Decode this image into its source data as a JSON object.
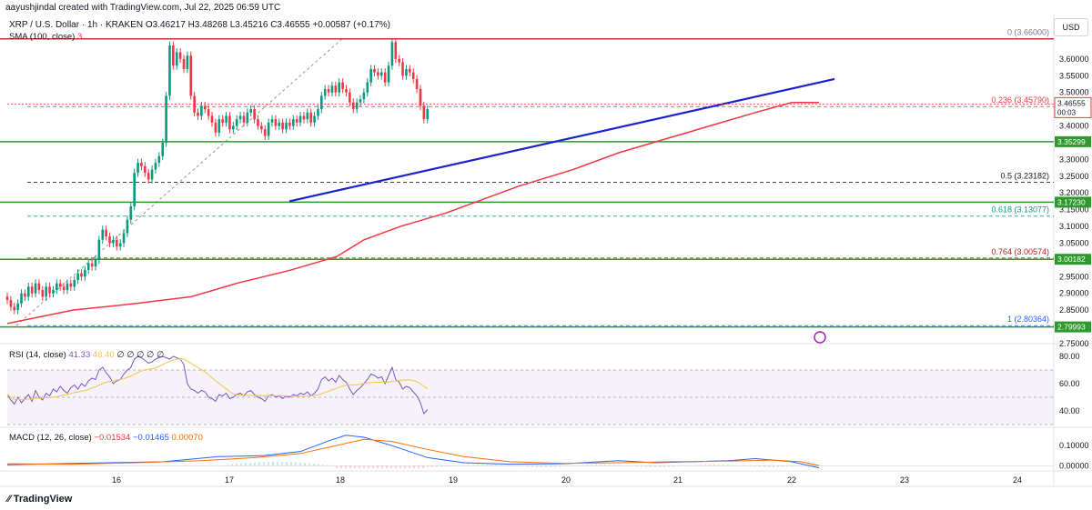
{
  "header": {
    "author_line": "aayushjindal created with TradingView.com, Jul 22, 2025 06:59 UTC",
    "symbol": "XRP / U.S. Dollar · 1h · KRAKEN",
    "ohlc": "O3.46217 H3.48268 L3.45216 C3.46555 +0.00587 (+0.17%)",
    "sma_label": "SMA (100, close)",
    "sma_value": "3"
  },
  "currency_button": "USD",
  "brand": "TradingView",
  "chart_data": {
    "type": "candlestick",
    "symbol": "XRP / U.S. Dollar",
    "timeframe": "1h",
    "exchange": "KRAKEN",
    "currency": "USD",
    "x_ticks": [
      "16",
      "17",
      "18",
      "19",
      "20",
      "21",
      "22",
      "23",
      "24"
    ],
    "y_ticks": [
      "3.60000",
      "3.55000",
      "3.50000",
      "3.45000",
      "3.40000",
      "3.30000",
      "3.25000",
      "3.20000",
      "3.15000",
      "3.10000",
      "3.05000",
      "2.95000",
      "2.90000",
      "2.85000",
      "2.75000"
    ],
    "price_ylim": [
      2.75,
      3.7
    ],
    "last_price": {
      "price": 3.46555,
      "label": "3.46555",
      "countdown": "00:03"
    },
    "candles_close": [
      2.88,
      2.86,
      2.85,
      2.87,
      2.9,
      2.89,
      2.92,
      2.9,
      2.93,
      2.91,
      2.89,
      2.92,
      2.9,
      2.91,
      2.93,
      2.92,
      2.91,
      2.93,
      2.92,
      2.94,
      2.96,
      2.95,
      2.97,
      2.99,
      2.98,
      3.0,
      3.06,
      3.09,
      3.07,
      3.05,
      3.06,
      3.04,
      3.05,
      3.08,
      3.12,
      3.16,
      3.26,
      3.29,
      3.28,
      3.26,
      3.24,
      3.27,
      3.29,
      3.31,
      3.35,
      3.49,
      3.64,
      3.58,
      3.62,
      3.6,
      3.57,
      3.61,
      3.49,
      3.44,
      3.43,
      3.46,
      3.45,
      3.43,
      3.41,
      3.38,
      3.42,
      3.41,
      3.43,
      3.39,
      3.4,
      3.42,
      3.43,
      3.41,
      3.44,
      3.45,
      3.42,
      3.4,
      3.39,
      3.37,
      3.41,
      3.42,
      3.4,
      3.41,
      3.39,
      3.41,
      3.4,
      3.42,
      3.41,
      3.43,
      3.42,
      3.44,
      3.41,
      3.43,
      3.45,
      3.49,
      3.51,
      3.5,
      3.52,
      3.5,
      3.53,
      3.51,
      3.5,
      3.47,
      3.45,
      3.47,
      3.48,
      3.5,
      3.53,
      3.57,
      3.56,
      3.55,
      3.56,
      3.53,
      3.58,
      3.65,
      3.6,
      3.59,
      3.55,
      3.57,
      3.56,
      3.54,
      3.51,
      3.46,
      3.42,
      3.45
    ],
    "candles_first_x": 8,
    "candles_x_step": 3.88,
    "sma100_points": [
      [
        8,
        2.81
      ],
      [
        80,
        2.85
      ],
      [
        150,
        2.87
      ],
      [
        210,
        2.89
      ],
      [
        260,
        2.93
      ],
      [
        320,
        2.97
      ],
      [
        370,
        3.01
      ],
      [
        400,
        3.06
      ],
      [
        440,
        3.1
      ],
      [
        490,
        3.14
      ],
      [
        530,
        3.18
      ],
      [
        570,
        3.22
      ],
      [
        630,
        3.27
      ],
      [
        680,
        3.32
      ],
      [
        730,
        3.36
      ],
      [
        780,
        3.4
      ],
      [
        830,
        3.44
      ],
      [
        870,
        3.47
      ],
      [
        900,
        3.47
      ]
    ],
    "trendline": {
      "from": [
        318,
        3.175
      ],
      "to": [
        917,
        3.54
      ]
    },
    "horizontal_levels": [
      {
        "price": 3.66,
        "label": "",
        "color": "#d32f2f",
        "style": "solid"
      },
      {
        "price": 3.35299,
        "label": "3.35299",
        "color": "#2e9a2e",
        "style": "solid"
      },
      {
        "price": 3.1723,
        "label": "3.17230",
        "color": "#2e9a2e",
        "style": "solid"
      },
      {
        "price": 3.00182,
        "label": "3.00182",
        "color": "#2e9a2e",
        "style": "solid"
      },
      {
        "price": 2.79993,
        "label": "2.79993",
        "color": "#2e9a2e",
        "style": "solid"
      }
    ],
    "fib_levels": [
      {
        "ratio": "0",
        "price": 3.66,
        "label": "0 (3.66000)",
        "color": "#787b86"
      },
      {
        "ratio": "0.236",
        "price": 3.4579,
        "label": "0.236 (3.45790)",
        "color": "#f23645"
      },
      {
        "ratio": "0.5",
        "price": 3.23182,
        "label": "0.5 (3.23182)",
        "color": "#131722"
      },
      {
        "ratio": "0.618",
        "price": 3.13077,
        "label": "0.618 (3.13077)",
        "color": "#089981"
      },
      {
        "ratio": "0.764",
        "price": 3.00574,
        "label": "0.764 (3.00574)",
        "color": "#b71c1c"
      },
      {
        "ratio": "1",
        "price": 2.80364,
        "label": "1 (2.80364)",
        "color": "#2962ff"
      }
    ],
    "rsi": {
      "label": "RSI (14, close)",
      "value": "41.33",
      "ma_value": "48.40",
      "extra": "∅ ∅ ∅ ∅ ∅",
      "y_ticks": [
        "80.00",
        "60.00",
        "40.00"
      ],
      "ylim": [
        28,
        88
      ],
      "values": [
        52,
        48,
        45,
        50,
        46,
        49,
        52,
        47,
        55,
        50,
        48,
        53,
        51,
        56,
        54,
        58,
        55,
        53,
        57,
        59,
        56,
        60,
        58,
        62,
        64,
        63,
        70,
        72,
        68,
        65,
        60,
        62,
        63,
        67,
        70,
        72,
        78,
        80,
        79,
        77,
        75,
        76,
        78,
        79,
        80,
        79,
        78,
        80,
        79,
        78,
        74,
        60,
        56,
        55,
        53,
        55,
        54,
        50,
        49,
        47,
        52,
        51,
        53,
        49,
        50,
        52,
        53,
        51,
        54,
        55,
        52,
        50,
        49,
        47,
        51,
        52,
        50,
        51,
        49,
        51,
        50,
        52,
        51,
        53,
        52,
        54,
        51,
        53,
        56,
        63,
        65,
        62,
        64,
        61,
        66,
        63,
        61,
        56,
        52,
        55,
        57,
        60,
        63,
        67,
        66,
        64,
        65,
        60,
        66,
        72,
        63,
        61,
        56,
        58,
        57,
        54,
        51,
        46,
        38,
        41
      ]
    },
    "macd": {
      "label": "MACD (12, 26, close)",
      "hist_value": "−0.01534",
      "macd_value": "−0.01465",
      "signal_value": "0.00070",
      "y_ticks": [
        "0.10000",
        "0.00000"
      ],
      "ylim": [
        -0.025,
        0.18
      ],
      "macd_line": [
        [
          8,
          0.005
        ],
        [
          60,
          0.01
        ],
        [
          120,
          0.015
        ],
        [
          180,
          0.02
        ],
        [
          240,
          0.045
        ],
        [
          290,
          0.05
        ],
        [
          330,
          0.07
        ],
        [
          360,
          0.12
        ],
        [
          380,
          0.15
        ],
        [
          400,
          0.14
        ],
        [
          430,
          0.1
        ],
        [
          470,
          0.04
        ],
        [
          510,
          0.015
        ],
        [
          560,
          0.008
        ],
        [
          620,
          0.01
        ],
        [
          680,
          0.025
        ],
        [
          720,
          0.015
        ],
        [
          760,
          0.02
        ],
        [
          800,
          0.025
        ],
        [
          830,
          0.035
        ],
        [
          870,
          0.02
        ],
        [
          900,
          -0.01
        ]
      ],
      "signal_line": [
        [
          8,
          0.01
        ],
        [
          80,
          0.008
        ],
        [
          150,
          0.015
        ],
        [
          220,
          0.025
        ],
        [
          280,
          0.04
        ],
        [
          330,
          0.06
        ],
        [
          370,
          0.1
        ],
        [
          400,
          0.13
        ],
        [
          430,
          0.12
        ],
        [
          470,
          0.08
        ],
        [
          510,
          0.045
        ],
        [
          560,
          0.02
        ],
        [
          620,
          0.012
        ],
        [
          680,
          0.015
        ],
        [
          740,
          0.02
        ],
        [
          800,
          0.023
        ],
        [
          850,
          0.028
        ],
        [
          880,
          0.02
        ],
        [
          900,
          0.001
        ]
      ]
    }
  }
}
